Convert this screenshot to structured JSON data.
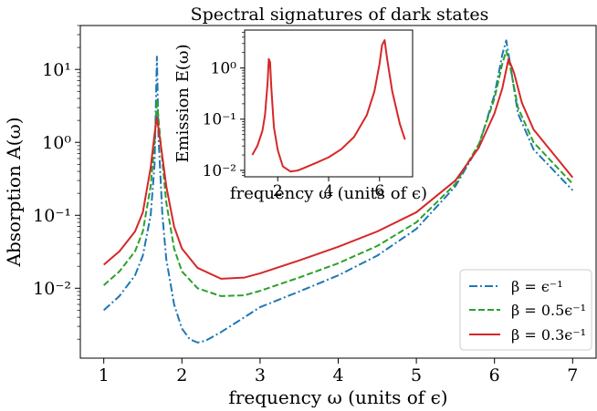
{
  "chart_data": [
    {
      "id": "main",
      "type": "line",
      "title": "Spectral signatures of dark states",
      "xlabel": "frequency ω (units of ϵ)",
      "ylabel": "Absorption A(ω)",
      "yscale": "log",
      "xlim": [
        0.7,
        7.3
      ],
      "ylim": [
        0.0011,
        40
      ],
      "xticks": [
        1,
        2,
        3,
        4,
        5,
        6,
        7
      ],
      "xtick_labels": [
        "1",
        "2",
        "3",
        "4",
        "5",
        "6",
        "7"
      ],
      "yticks": [
        0.01,
        0.1,
        1,
        10
      ],
      "ytick_labels": [
        "10⁻²",
        "10⁻¹",
        "10⁰",
        "10¹"
      ],
      "legend_position": "lower-right",
      "series": [
        {
          "name": "β = ϵ⁻¹",
          "color": "#1f77b4",
          "dash": "dashdot",
          "x": [
            1.0,
            1.2,
            1.4,
            1.5,
            1.6,
            1.65,
            1.68,
            1.7,
            1.75,
            1.8,
            1.9,
            2.0,
            2.1,
            2.2,
            2.3,
            2.5,
            2.8,
            3.0,
            3.5,
            4.0,
            4.5,
            5.0,
            5.5,
            5.8,
            6.0,
            6.1,
            6.15,
            6.2,
            6.3,
            6.5,
            7.0
          ],
          "y": [
            0.005,
            0.0078,
            0.015,
            0.028,
            0.1,
            0.5,
            15,
            1.2,
            0.1,
            0.025,
            0.006,
            0.0028,
            0.002,
            0.0018,
            0.0019,
            0.0025,
            0.004,
            0.0055,
            0.009,
            0.015,
            0.028,
            0.065,
            0.25,
            0.9,
            4.5,
            16,
            25,
            12,
            2.5,
            0.8,
            0.22
          ]
        },
        {
          "name": "β = 0.5ϵ⁻¹",
          "color": "#2ca02c",
          "dash": "dashed",
          "x": [
            1.0,
            1.2,
            1.4,
            1.5,
            1.6,
            1.65,
            1.68,
            1.72,
            1.8,
            1.9,
            2.0,
            2.2,
            2.5,
            2.8,
            3.0,
            3.5,
            4.0,
            4.5,
            5.0,
            5.5,
            5.8,
            6.0,
            6.1,
            6.15,
            6.2,
            6.3,
            6.5,
            7.0
          ],
          "y": [
            0.011,
            0.017,
            0.032,
            0.06,
            0.25,
            1.0,
            3.8,
            1.2,
            0.15,
            0.035,
            0.017,
            0.01,
            0.0078,
            0.008,
            0.0092,
            0.014,
            0.022,
            0.038,
            0.08,
            0.27,
            0.95,
            4.0,
            12,
            18,
            11,
            3.0,
            1.0,
            0.27
          ]
        },
        {
          "name": "β = 0.3ϵ⁻¹",
          "color": "#d62728",
          "dash": "solid",
          "x": [
            1.0,
            1.2,
            1.4,
            1.5,
            1.6,
            1.65,
            1.68,
            1.72,
            1.8,
            1.9,
            2.0,
            2.2,
            2.5,
            2.8,
            3.0,
            3.5,
            4.0,
            4.5,
            5.0,
            5.5,
            5.8,
            6.0,
            6.1,
            6.18,
            6.25,
            6.35,
            6.5,
            7.0
          ],
          "y": [
            0.021,
            0.032,
            0.06,
            0.11,
            0.45,
            1.3,
            2.2,
            1.1,
            0.25,
            0.07,
            0.035,
            0.019,
            0.0135,
            0.014,
            0.016,
            0.024,
            0.037,
            0.06,
            0.11,
            0.3,
            0.85,
            2.5,
            5.5,
            14,
            9,
            3.5,
            1.5,
            0.33
          ]
        }
      ]
    },
    {
      "id": "inset",
      "type": "line",
      "xlabel": "frequency ω (units of ϵ)",
      "ylabel": "Emission E(ω)",
      "yscale": "log",
      "xlim": [
        0.7,
        7.3
      ],
      "ylim": [
        0.0075,
        5.5
      ],
      "xticks": [
        2,
        4,
        6
      ],
      "xtick_labels": [
        "2",
        "4",
        "6"
      ],
      "yticks": [
        0.01,
        0.1,
        1
      ],
      "ytick_labels": [
        "10⁻²",
        "10⁻¹",
        "10⁰"
      ],
      "series": [
        {
          "color": "#d62728",
          "dash": "solid",
          "x": [
            1.0,
            1.2,
            1.4,
            1.5,
            1.6,
            1.65,
            1.7,
            1.75,
            1.85,
            2.0,
            2.2,
            2.5,
            2.8,
            3.0,
            3.5,
            4.0,
            4.5,
            5.0,
            5.5,
            5.8,
            6.0,
            6.1,
            6.2,
            6.3,
            6.5,
            6.8,
            7.0
          ],
          "y": [
            0.02,
            0.03,
            0.06,
            0.12,
            0.5,
            1.5,
            1.3,
            0.4,
            0.07,
            0.025,
            0.012,
            0.0095,
            0.01,
            0.011,
            0.014,
            0.018,
            0.026,
            0.045,
            0.12,
            0.35,
            1.2,
            2.8,
            3.5,
            1.5,
            0.35,
            0.08,
            0.04
          ]
        }
      ]
    }
  ]
}
